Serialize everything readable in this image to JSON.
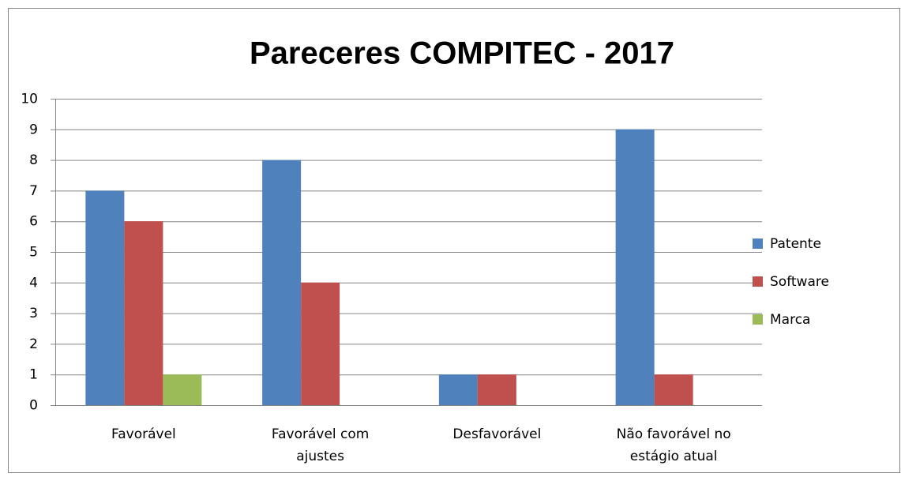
{
  "chart_data": {
    "type": "bar",
    "title": "Pareceres COMPITEC - 2017",
    "categories": [
      "Favorável",
      "Favorável com ajustes",
      "Desfavorável",
      "Não favorável no estágio atual"
    ],
    "series": [
      {
        "name": "Patente",
        "color": "#4f81bd",
        "values": [
          7,
          8,
          1,
          9
        ]
      },
      {
        "name": "Software",
        "color": "#c0504d",
        "values": [
          6,
          4,
          1,
          1
        ]
      },
      {
        "name": "Marca",
        "color": "#9bbb59",
        "values": [
          1,
          0,
          0,
          0
        ]
      }
    ],
    "ylim": [
      0,
      10
    ],
    "yticks": [
      0,
      1,
      2,
      3,
      4,
      5,
      6,
      7,
      8,
      9,
      10
    ],
    "grid": true,
    "legend": "right"
  }
}
